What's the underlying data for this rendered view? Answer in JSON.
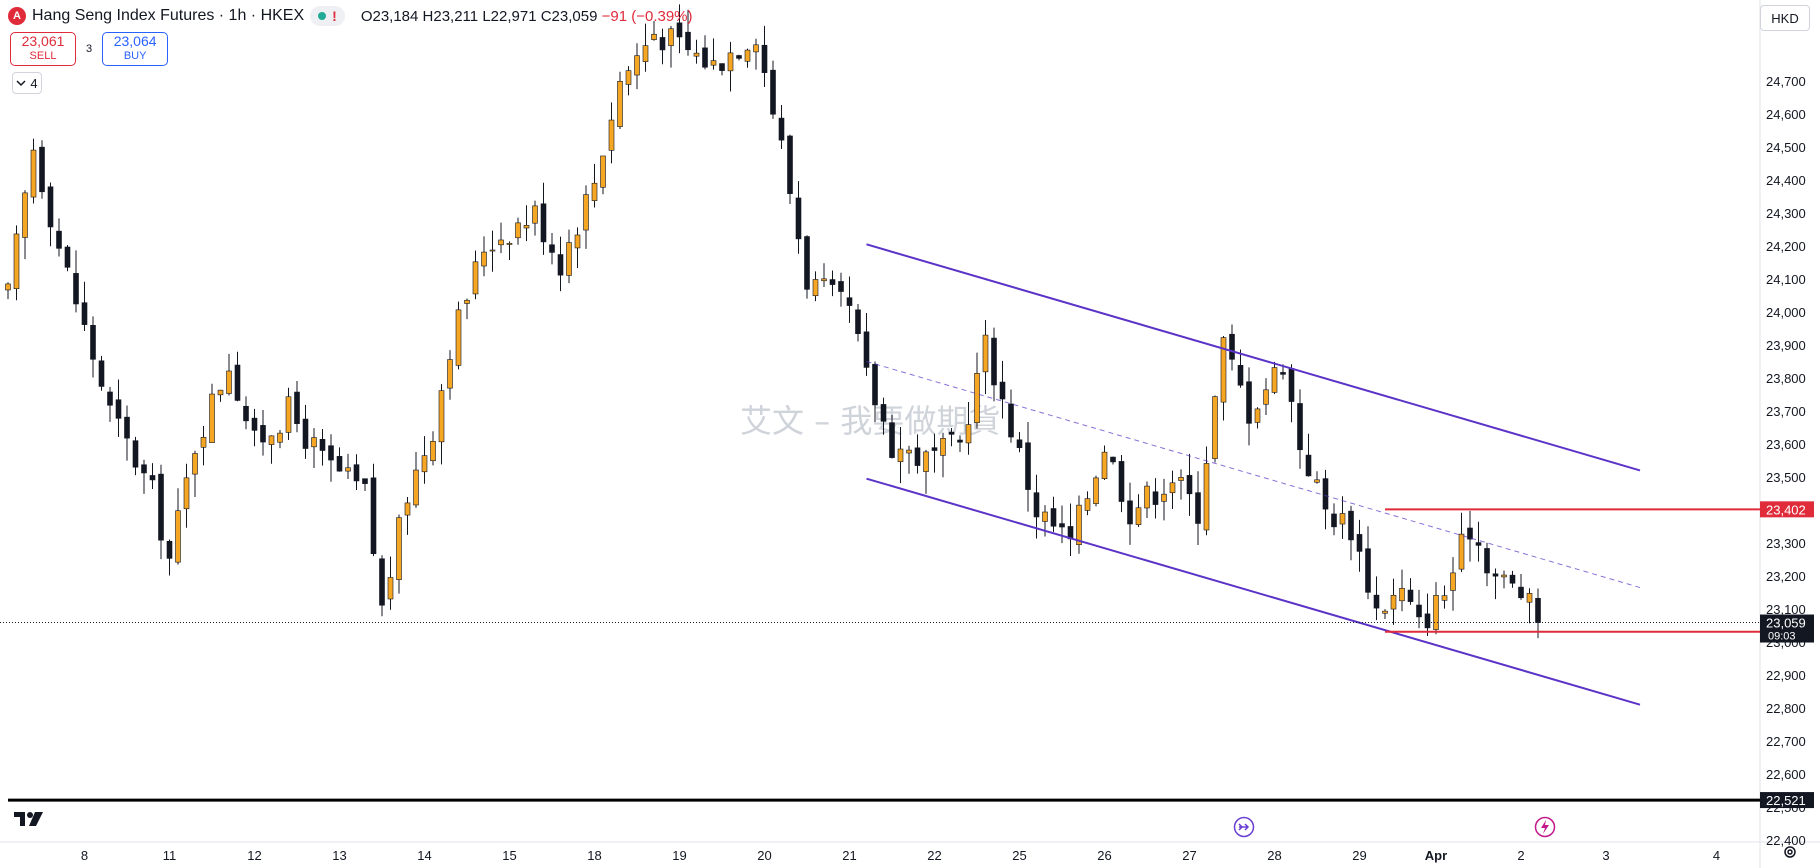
{
  "header": {
    "symbol_title": "Hang Seng Index Futures · 1h · HKEX",
    "logo_letter": "A",
    "status_alert": "!",
    "ohlc": {
      "o": "O23,184",
      "h": "H23,211",
      "l": "L22,971",
      "c": "C23,059",
      "chg": "−91 (−0.39%)"
    }
  },
  "trade": {
    "sell_price": "23,061",
    "sell_label": "SELL",
    "buy_price": "23,064",
    "buy_label": "BUY",
    "spread": "3"
  },
  "indicator_toggle": {
    "count": "4"
  },
  "currency": "HKD",
  "watermark": "艾文 – 我要做期貨",
  "colors": {
    "up": "#f5a623",
    "down": "#131722",
    "channel": "#5b34c7",
    "level_line": "#e02b3a",
    "support_line": "#000000",
    "label_bg_red": "#e02b3a"
  },
  "chart_data": {
    "type": "candlestick",
    "timeframe": "1h",
    "ylim": [
      22300,
      24850
    ],
    "y_ticks": [
      22400,
      22500,
      22600,
      22700,
      22800,
      22900,
      23000,
      23100,
      23200,
      23300,
      23400,
      23500,
      23600,
      23700,
      23800,
      23900,
      24000,
      24100,
      24200,
      24300,
      24400,
      24500,
      24600,
      24700
    ],
    "y_tick_labels": [
      "22,400",
      "22,500",
      "22,600",
      "22,700",
      "22,800",
      "22,900",
      "23,000",
      "23,100",
      "23,200",
      "23,300",
      "23,400",
      "23,500",
      "23,600",
      "23,700",
      "23,800",
      "23,900",
      "24,000",
      "24,100",
      "24,200",
      "24,300",
      "24,400",
      "24,500",
      "24,600",
      "24,700"
    ],
    "x_ticks": [
      {
        "label": "8",
        "slot": 9
      },
      {
        "label": "11",
        "slot": 19
      },
      {
        "label": "12",
        "slot": 29
      },
      {
        "label": "13",
        "slot": 39
      },
      {
        "label": "14",
        "slot": 49
      },
      {
        "label": "15",
        "slot": 59
      },
      {
        "label": "18",
        "slot": 69
      },
      {
        "label": "19",
        "slot": 79
      },
      {
        "label": "20",
        "slot": 89
      },
      {
        "label": "21",
        "slot": 99
      },
      {
        "label": "22",
        "slot": 109
      },
      {
        "label": "25",
        "slot": 119
      },
      {
        "label": "26",
        "slot": 129
      },
      {
        "label": "27",
        "slot": 139
      },
      {
        "label": "28",
        "slot": 149
      },
      {
        "label": "29",
        "slot": 159
      },
      {
        "label": "Apr",
        "slot": 168
      },
      {
        "label": "2",
        "slot": 178
      },
      {
        "label": "3",
        "slot": 188
      },
      {
        "label": "4",
        "slot": 201
      }
    ],
    "waypoints": [
      [
        0,
        24050
      ],
      [
        3,
        24500
      ],
      [
        6,
        24200
      ],
      [
        12,
        23700
      ],
      [
        17,
        23450
      ],
      [
        19,
        23250
      ],
      [
        22,
        23600
      ],
      [
        26,
        23850
      ],
      [
        29,
        23600
      ],
      [
        33,
        23700
      ],
      [
        37,
        23550
      ],
      [
        42,
        23450
      ],
      [
        44,
        23100
      ],
      [
        47,
        23450
      ],
      [
        50,
        23650
      ],
      [
        52,
        23900
      ],
      [
        56,
        24200
      ],
      [
        62,
        24300
      ],
      [
        65,
        24150
      ],
      [
        69,
        24400
      ],
      [
        72,
        24700
      ],
      [
        76,
        24850
      ],
      [
        83,
        24750
      ],
      [
        88,
        24850
      ],
      [
        91,
        24500
      ],
      [
        94,
        24100
      ],
      [
        99,
        24000
      ],
      [
        101,
        23800
      ],
      [
        104,
        23600
      ],
      [
        108,
        23550
      ],
      [
        112,
        23600
      ],
      [
        115,
        23900
      ],
      [
        118,
        23650
      ],
      [
        121,
        23400
      ],
      [
        125,
        23300
      ],
      [
        129,
        23600
      ],
      [
        132,
        23400
      ],
      [
        137,
        23500
      ],
      [
        140,
        23400
      ],
      [
        143,
        23900
      ],
      [
        146,
        23700
      ],
      [
        150,
        23850
      ],
      [
        152,
        23600
      ],
      [
        155,
        23400
      ],
      [
        158,
        23350
      ],
      [
        161,
        23100
      ],
      [
        164,
        23150
      ],
      [
        166,
        23050
      ],
      [
        169,
        23150
      ],
      [
        172,
        23350
      ],
      [
        175,
        23200
      ],
      [
        178,
        23150
      ],
      [
        180,
        23059
      ]
    ],
    "last_price": 23059,
    "last_price_label": "23,059",
    "countdown": "09:03",
    "levels": [
      {
        "price": 23402,
        "label": "23,402",
        "style": "resistance",
        "slot_start": 162
      },
      {
        "price": 23031,
        "label": "23,031",
        "style": "support",
        "slot_start": 162
      },
      {
        "price": 22521,
        "label": "22,521",
        "style": "major-support",
        "slot_start": 0
      }
    ],
    "channel": {
      "upper": {
        "start": [
          101,
          24205
        ],
        "end": [
          192,
          23520
        ]
      },
      "lower": {
        "start": [
          101,
          23495
        ],
        "end": [
          192,
          22810
        ]
      },
      "mid": {
        "start": [
          101,
          23850
        ],
        "end": [
          192,
          23165
        ]
      }
    }
  }
}
